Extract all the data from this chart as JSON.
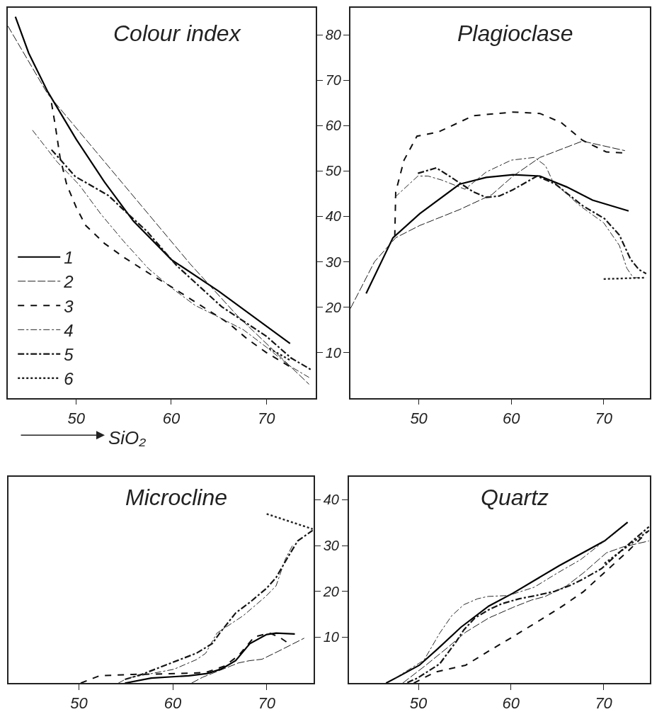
{
  "chart_data": [
    {
      "type": "line",
      "title": "Colour index",
      "xlabel": "SiO₂",
      "xlim": [
        42.8,
        75.2
      ],
      "ylim": [
        0,
        86
      ],
      "xticks": [
        50,
        60,
        70
      ],
      "yticks": [
        10,
        20,
        30,
        40,
        50,
        60,
        70,
        80
      ],
      "legend": "bottom left",
      "marker": "none",
      "series": [
        {
          "name": "1",
          "color": "#000000",
          "line_style": "solid",
          "x": [
            43.6,
            45,
            47,
            50,
            53,
            56,
            60,
            65,
            72.5
          ],
          "values": [
            84,
            76,
            67.5,
            57,
            47.5,
            39,
            30.5,
            23.5,
            12
          ]
        },
        {
          "name": "2",
          "color": "#1c1c1c",
          "line_style": "dashed",
          "x": [
            42.8,
            47,
            52,
            57,
            62,
            67,
            72,
            74.5
          ],
          "values": [
            82,
            67,
            54.5,
            42,
            29.5,
            18,
            8,
            3
          ]
        },
        {
          "name": "3",
          "color": "#0e0e0e",
          "line_style": "dashed",
          "x": [
            47.4,
            47.8,
            48.3,
            49,
            50,
            51,
            53,
            55,
            58,
            60,
            63,
            66,
            68,
            70,
            72.4
          ],
          "values": [
            65,
            60,
            53,
            47,
            42,
            38,
            34,
            31,
            27,
            24.5,
            20.5,
            16.5,
            13,
            10,
            7
          ]
        },
        {
          "name": "4",
          "color": "#2a2a2a",
          "line_style": "dashdot",
          "x": [
            45.4,
            48,
            50.3,
            52.6,
            55,
            57.6,
            60,
            62.5,
            65,
            67.6,
            70,
            72.5,
            74.5
          ],
          "values": [
            59,
            52,
            47,
            40.5,
            34.5,
            28.5,
            24.3,
            20.4,
            17.8,
            15,
            11.2,
            7,
            4.5
          ]
        },
        {
          "name": "5",
          "color": "#141414",
          "line_style": "dashdot",
          "x": [
            47.4,
            49.9,
            53.4,
            54.6,
            57.4,
            60.6,
            65.3,
            70,
            72.6,
            74.8
          ],
          "values": [
            54.7,
            48.8,
            44.6,
            42.2,
            36.8,
            29.1,
            20.1,
            13.6,
            8.8,
            6.1
          ]
        },
        {
          "name": "6",
          "color": "#232323",
          "line_style": "dotted",
          "x": [
            70.3,
            72.6
          ],
          "values": [
            10.9,
            8.2
          ]
        }
      ]
    },
    {
      "type": "line",
      "title": "Plagioclase",
      "xlim": [
        42.6,
        75
      ],
      "ylim": [
        0,
        86
      ],
      "xticks": [
        50,
        60,
        70
      ],
      "yticks": [
        10,
        20,
        30,
        40,
        50,
        60,
        70,
        80
      ],
      "tick_labels": "x",
      "marker": "none",
      "series": [
        {
          "color": "#000000",
          "line_style": "solid",
          "x": [
            44.3,
            47.2,
            50.1,
            54.4,
            57.3,
            60.2,
            63.1,
            66,
            68.8,
            72.7
          ],
          "values": [
            23,
            35.3,
            40.6,
            47.1,
            48.6,
            49.2,
            48.9,
            46.5,
            43.6,
            41.2
          ]
        },
        {
          "color": "#1c1c1c",
          "line_style": "dashed",
          "x": [
            42.6,
            45.2,
            47.5,
            50.1,
            54.4,
            57.9,
            60.2,
            63.1,
            67.7,
            72.3
          ],
          "values": [
            19.7,
            30,
            35.3,
            38,
            41.5,
            44.8,
            48.9,
            53,
            56.6,
            54.5
          ]
        },
        {
          "color": "#0e0e0e",
          "line_style": "dashed",
          "x": [
            47.4,
            47.5,
            48.4,
            49.8,
            52.1,
            55.9,
            60.2,
            63.1,
            65.4,
            67.7,
            70.3,
            72.3
          ],
          "values": [
            35.6,
            45.4,
            52.4,
            57.7,
            58.6,
            62.2,
            63,
            62.7,
            60.7,
            56.8,
            54.2,
            54
          ]
        },
        {
          "color": "#2a2a2a",
          "line_style": "dashdot",
          "x": [
            47.4,
            49.9,
            51,
            52.5,
            55,
            57.3,
            60,
            62.5,
            63.7,
            64.5,
            67.4,
            70,
            71.7,
            72.5,
            73.2,
            74
          ],
          "values": [
            44.2,
            48.9,
            48.9,
            48,
            46,
            49.8,
            52.4,
            53,
            51.2,
            47.7,
            42.4,
            38.6,
            33.6,
            28.6,
            26.5,
            26.5
          ]
        },
        {
          "color": "#141414",
          "line_style": "dashdot",
          "x": [
            49.9,
            51.9,
            53.3,
            55.9,
            57.3,
            58.7,
            60.2,
            62.8,
            64.8,
            67.7,
            70.1,
            71.7,
            72.9,
            73.8,
            74.6
          ],
          "values": [
            49.5,
            50.7,
            48.9,
            45.4,
            44.2,
            44.5,
            45.9,
            48.9,
            47.1,
            42.4,
            39.5,
            35.9,
            30.6,
            28.3,
            27.4
          ]
        },
        {
          "color": "#232323",
          "line_style": "dotted",
          "x": [
            70,
            74.6
          ],
          "values": [
            26.2,
            26.5
          ]
        }
      ]
    },
    {
      "type": "line",
      "title": "Microcline",
      "xlim": [
        42.5,
        75
      ],
      "ylim": [
        0,
        45
      ],
      "xticks": [
        50,
        60,
        70
      ],
      "yticks": [
        10,
        20,
        30,
        40
      ],
      "marker": "none",
      "series": [
        {
          "color": "#000000",
          "line_style": "solid",
          "x": [
            54.9,
            57.7,
            61.7,
            63.7,
            65.2,
            66.7,
            68.2,
            70,
            71,
            73
          ],
          "values": [
            0,
            1.1,
            1.6,
            2.1,
            3.1,
            4.9,
            8.6,
            10.6,
            10.9,
            10.7
          ]
        },
        {
          "color": "#1c1c1c",
          "line_style": "dashed",
          "x": [
            62,
            63.2,
            67,
            68.2,
            69.5,
            71.3,
            74
          ],
          "values": [
            0,
            1.3,
            4.4,
            4.9,
            5.2,
            7,
            9.8
          ]
        },
        {
          "color": "#0e0e0e",
          "line_style": "dashed",
          "x": [
            50.2,
            52.2,
            55.7,
            59.2,
            63.5,
            65.5,
            67,
            68.7,
            70.3,
            71.3,
            72.6
          ],
          "values": [
            0,
            1.6,
            1.9,
            2,
            2.3,
            3.7,
            6,
            10.1,
            10.9,
            10.1,
            8.3
          ]
        },
        {
          "color": "#2a2a2a",
          "line_style": "dashdot",
          "x": [
            54.2,
            55.2,
            60.1,
            62.5,
            63.5,
            64.7,
            67.5,
            69.9,
            71,
            72,
            72.8
          ],
          "values": [
            0,
            1.1,
            3,
            5.1,
            6.5,
            10.9,
            14.7,
            18.9,
            21.2,
            27.1,
            30.2
          ]
        },
        {
          "color": "#141414",
          "line_style": "dashdot",
          "x": [
            54.9,
            56.7,
            59.2,
            62.5,
            64.2,
            65,
            66.7,
            68.2,
            70,
            71,
            72.3,
            73.3,
            74.9
          ],
          "values": [
            0.8,
            1.9,
            3.9,
            6.5,
            8.6,
            10.9,
            15.3,
            17.6,
            20.7,
            23,
            27.6,
            31,
            33.3
          ]
        },
        {
          "color": "#232323",
          "line_style": "dotted",
          "x": [
            70,
            74.9
          ],
          "values": [
            36.9,
            33.6
          ]
        }
      ]
    },
    {
      "type": "line",
      "title": "Quartz",
      "xlim": [
        42.5,
        75
      ],
      "ylim": [
        0,
        45
      ],
      "xticks": [
        50,
        60,
        70
      ],
      "yticks": [
        10,
        20,
        30,
        40
      ],
      "tick_labels": "x",
      "marker": "none",
      "series": [
        {
          "color": "#000000",
          "line_style": "solid",
          "x": [
            46.5,
            48,
            50.1,
            52.1,
            54.6,
            57.6,
            60.2,
            65.2,
            70.1,
            72.6
          ],
          "values": [
            0,
            1.6,
            3.9,
            7.5,
            12.2,
            16.8,
            19.6,
            25.6,
            31,
            35.1
          ]
        },
        {
          "color": "#1c1c1c",
          "line_style": "dashed",
          "x": [
            48.3,
            50.8,
            53.3,
            55.1,
            57.6,
            60.2,
            62.2,
            63.7,
            66,
            67.8,
            70.3,
            72.1,
            74.9
          ],
          "values": [
            0,
            3.9,
            8,
            11.1,
            14.2,
            16.5,
            18.1,
            18.9,
            21.2,
            24,
            28.4,
            29.7,
            31
          ]
        },
        {
          "color": "#0e0e0e",
          "line_style": "dashed",
          "x": [
            49.5,
            51.8,
            55.1,
            57.6,
            60.2,
            65.2,
            67.8,
            70.3,
            72.6,
            74.9
          ],
          "values": [
            0,
            2.4,
            3.9,
            7,
            10.1,
            16.3,
            19.9,
            24.5,
            28.7,
            33.3
          ]
        },
        {
          "color": "#2a2a2a",
          "line_style": "dashdot",
          "x": [
            47.5,
            50.6,
            52.3,
            53.6,
            54.9,
            56.4,
            57.5,
            59.7,
            62.5,
            65,
            67.5,
            69.9,
            71.3
          ],
          "values": [
            1.1,
            5,
            10.9,
            14.7,
            17.1,
            18.4,
            18.9,
            19.1,
            20.9,
            24,
            26.9,
            30.7,
            32.8
          ]
        },
        {
          "color": "#141414",
          "line_style": "dashdot",
          "x": [
            48.8,
            49.9,
            52.3,
            54.1,
            54.9,
            56.1,
            57.6,
            59,
            60.9,
            62.7,
            64.7,
            66.5,
            67.8,
            69.8,
            71.8,
            74.9
          ],
          "values": [
            0.1,
            1.1,
            4.2,
            9.1,
            11.6,
            14.2,
            16,
            17.3,
            18.4,
            19.1,
            20,
            21.4,
            22.7,
            25,
            28.7,
            34.1
          ]
        },
        {
          "color": "#232323",
          "line_style": "dotted",
          "x": [
            70.1,
            74.9
          ],
          "values": [
            26.1,
            33.3
          ]
        }
      ]
    }
  ]
}
